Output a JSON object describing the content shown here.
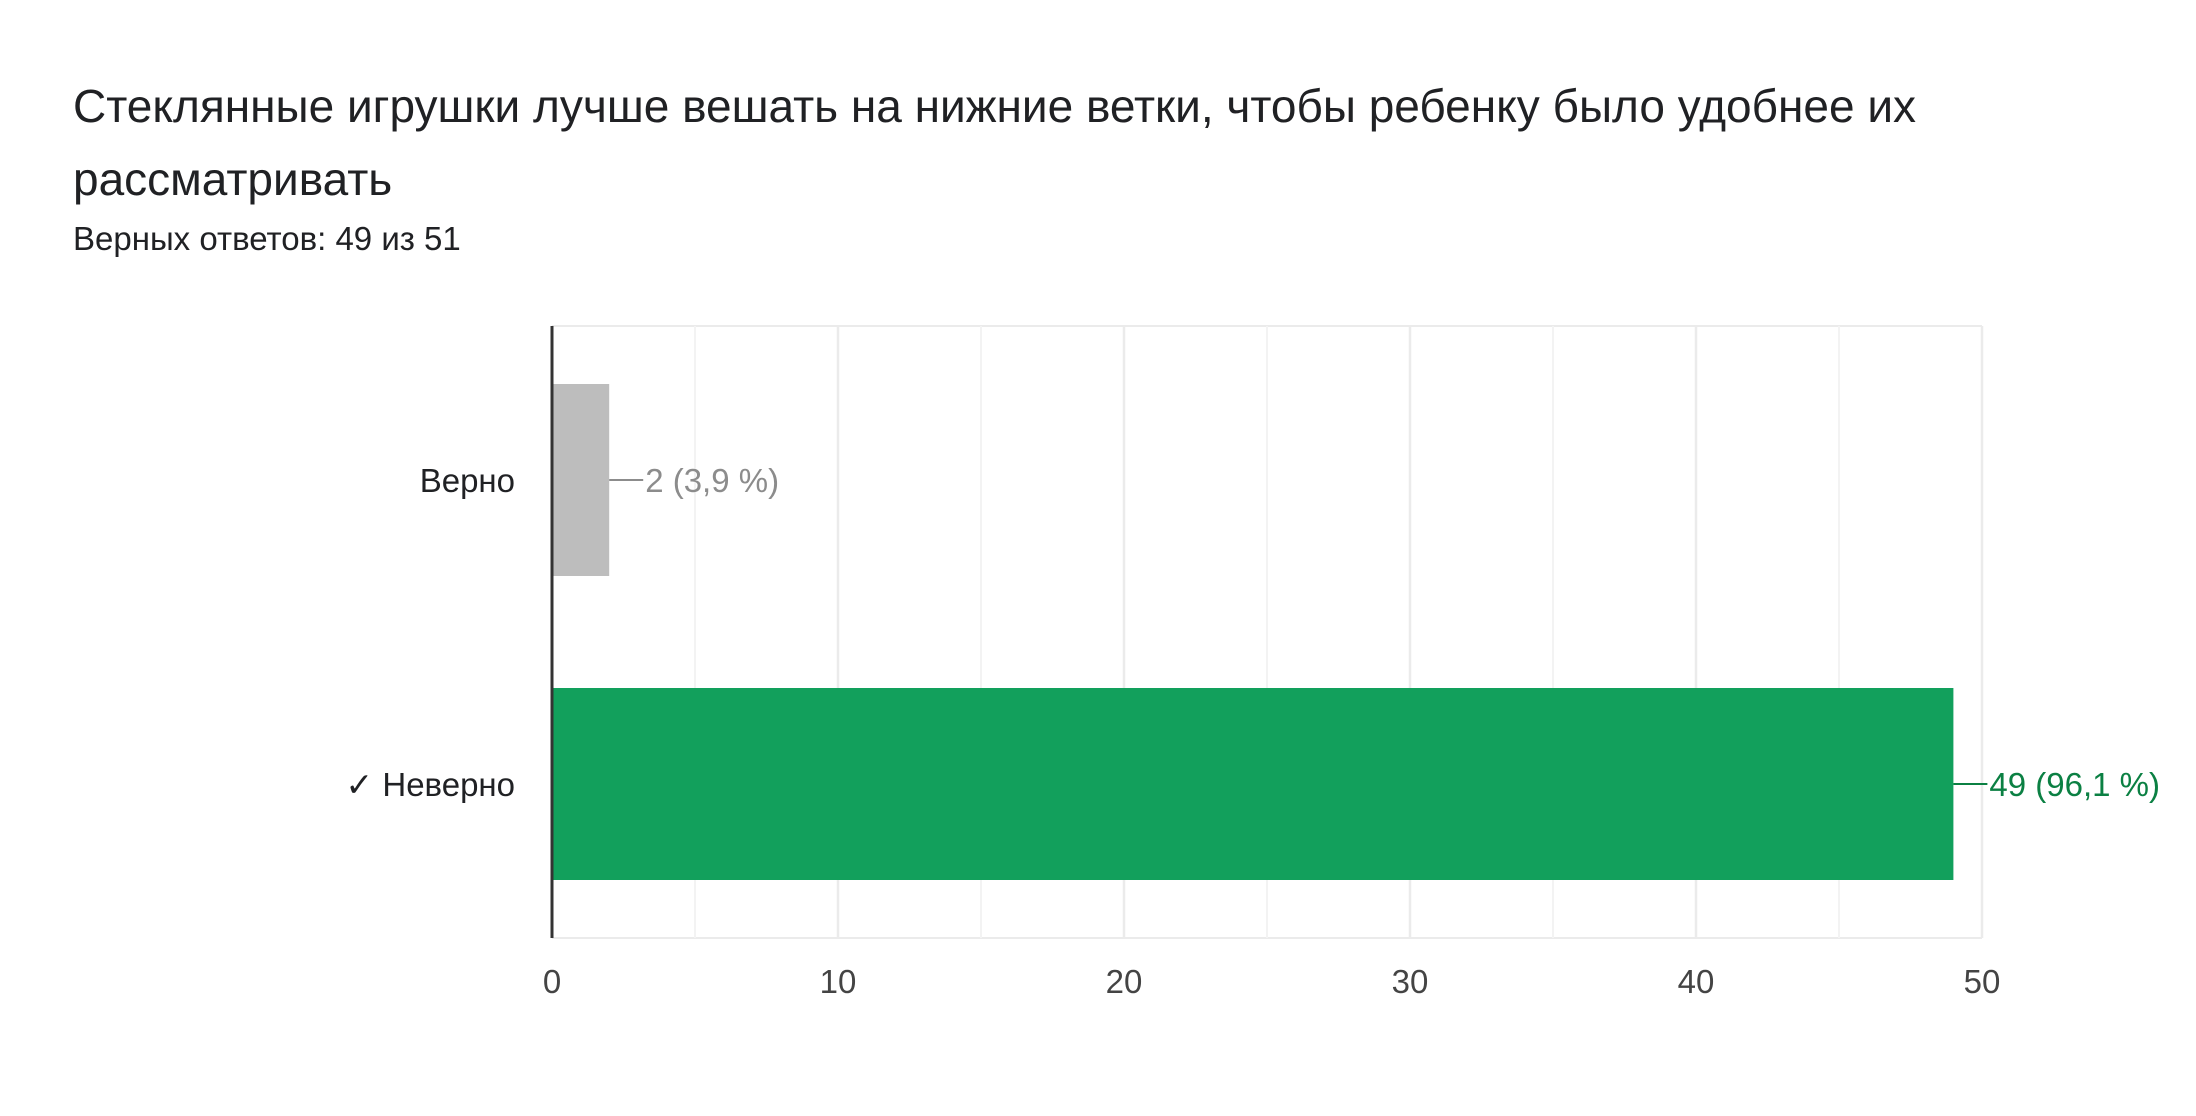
{
  "question": {
    "title": "Стеклянные игрушки лучше вешать на нижние ветки, чтобы ребенку было удобнее их рассматривать",
    "score_text": "Верных ответов: 49 из 51"
  },
  "colors": {
    "correct_bar": "#12a05c",
    "correct_label": "#0b8043",
    "other_bar": "#bdbdbd",
    "other_label": "#8c8c8c",
    "grid": "#ebebeb",
    "axis": "#333333"
  },
  "chart_data": {
    "type": "bar",
    "orientation": "horizontal",
    "categories": [
      "Верно",
      "✓ Неверно"
    ],
    "values": [
      2,
      49
    ],
    "data_labels": [
      "2 (3,9 %)",
      "49 (96,1 %)"
    ],
    "correct": [
      false,
      true
    ],
    "xlim": [
      0,
      50
    ],
    "xticks": [
      "0",
      "10",
      "20",
      "30",
      "40",
      "50"
    ],
    "xtick_values": [
      0,
      10,
      20,
      30,
      40,
      50
    ],
    "minor_grid_values": [
      5,
      15,
      25,
      35,
      45
    ],
    "grid": true,
    "title": "",
    "xlabel": "",
    "ylabel": ""
  }
}
